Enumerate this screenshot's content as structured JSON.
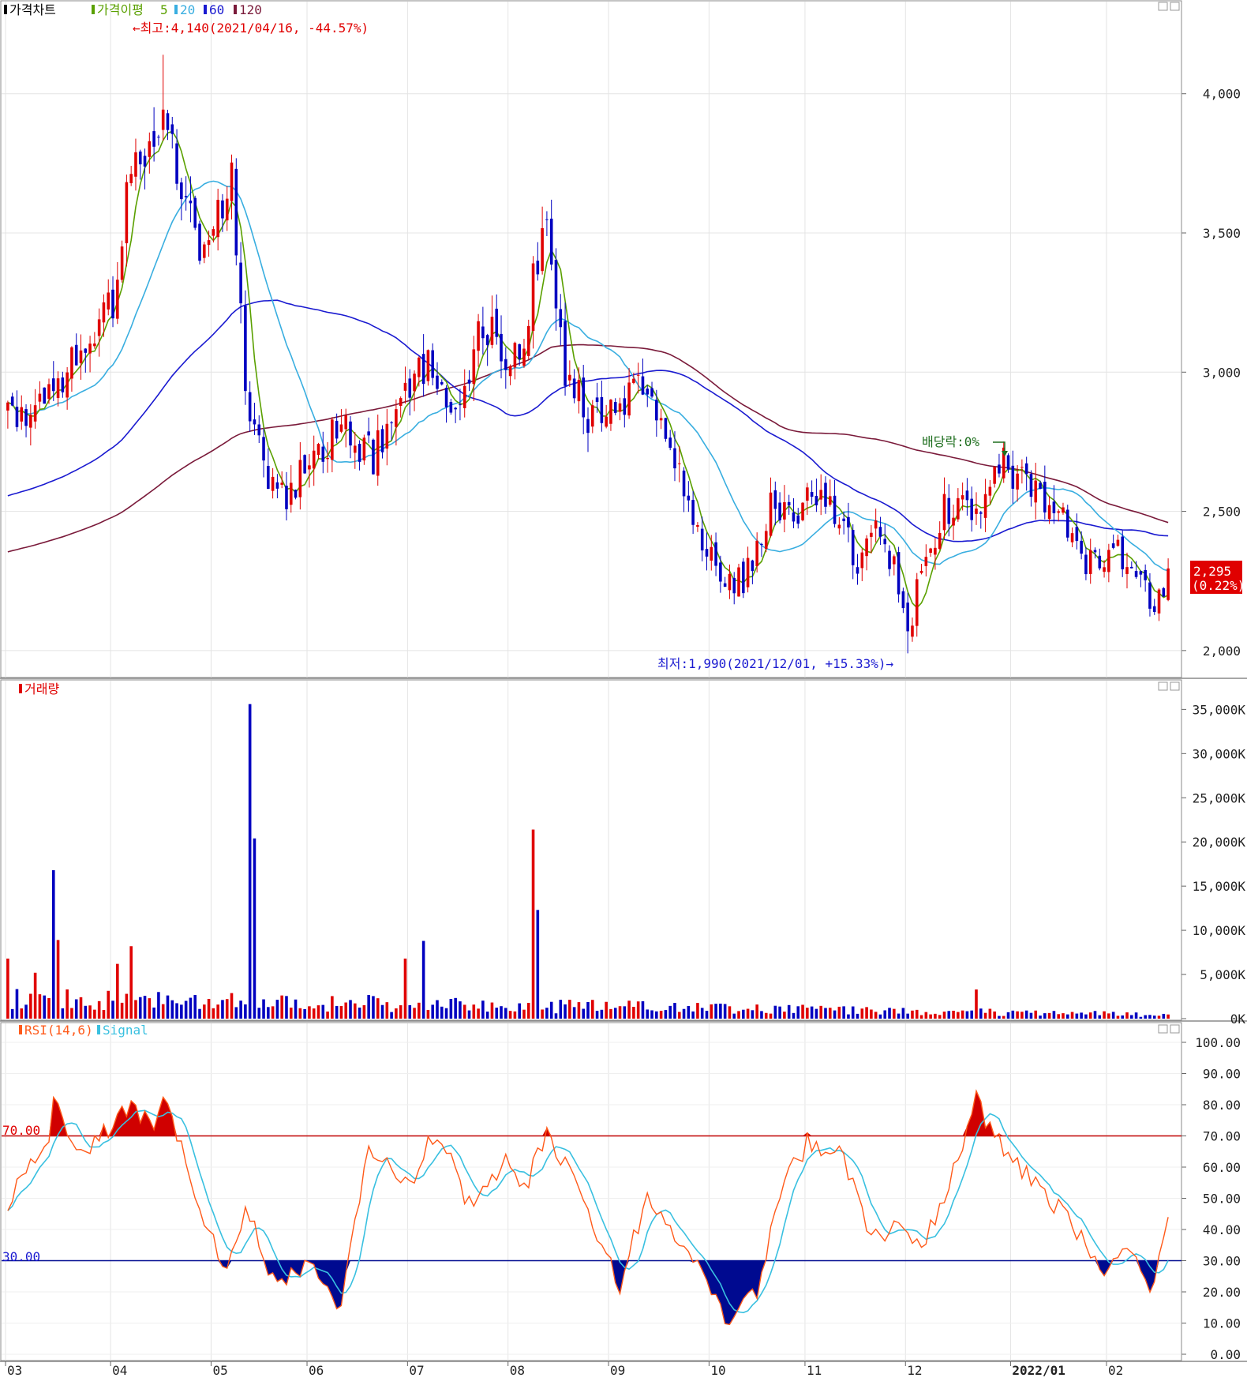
{
  "colors": {
    "up": "#e00000",
    "down": "#0000c0",
    "ma5": "#5aa000",
    "ma20": "#39aee0",
    "ma60": "#1a1ad0",
    "ma120": "#7a1a3a",
    "grid": "#e4e4e4",
    "rsi": "#ff5a1a",
    "signal": "#39c0e0"
  },
  "price_panel": {
    "legend_title": "가격차트",
    "ma_label": "가격이평",
    "ma_periods": [
      "5",
      "20",
      "60",
      "120"
    ],
    "high_annotation": "←최고:4,140(2021/04/16, -44.57%)",
    "low_annotation": "최저:1,990(2021/12/01, +15.33%)→",
    "dividend_annotation": "배당락:0%",
    "last_price": "2,295",
    "last_change": "(0.22%)",
    "y_ticks": [
      "4,000",
      "3,500",
      "3,000",
      "2,500",
      "2,000"
    ]
  },
  "volume_panel": {
    "legend_title": "거래량",
    "y_ticks": [
      "35,000K",
      "30,000K",
      "25,000K",
      "20,000K",
      "15,000K",
      "10,000K",
      "5,000K",
      "0K"
    ]
  },
  "rsi_panel": {
    "legend_rsi": "RSI(14,6)",
    "legend_signal": "Signal",
    "upper_label": "70.00",
    "lower_label": "30.00",
    "y_ticks": [
      "100.00",
      "90.00",
      "80.00",
      "70.00",
      "60.00",
      "50.00",
      "40.00",
      "30.00",
      "20.00",
      "10.00",
      "0.00"
    ]
  },
  "x_axis": {
    "month_labels": [
      "03",
      "04",
      "05",
      "06",
      "07",
      "08",
      "09",
      "10",
      "11",
      "12",
      "2022/01",
      "02"
    ]
  },
  "chart_data": [
    {
      "type": "candlestick",
      "ylim": [
        1940,
        4280
      ],
      "price_anchors": [
        {
          "x": "2021-03-01",
          "close": 2850
        },
        {
          "x": "2021-03-15",
          "close": 2900
        },
        {
          "x": "2021-03-25",
          "close": 3150
        },
        {
          "x": "2021-04-01",
          "close": 3250
        },
        {
          "x": "2021-04-06",
          "close": 3600
        },
        {
          "x": "2021-04-10",
          "close": 3750
        },
        {
          "x": "2021-04-16",
          "close": 3900
        },
        {
          "x": "2021-04-22",
          "close": 3700
        },
        {
          "x": "2021-04-28",
          "close": 3350
        },
        {
          "x": "2021-05-04",
          "close": 3550
        },
        {
          "x": "2021-05-07",
          "close": 3700
        },
        {
          "x": "2021-05-12",
          "close": 3000
        },
        {
          "x": "2021-05-14",
          "close": 2750
        },
        {
          "x": "2021-05-20",
          "close": 2600
        },
        {
          "x": "2021-05-25",
          "close": 2550
        },
        {
          "x": "2021-06-01",
          "close": 2700
        },
        {
          "x": "2021-06-10",
          "close": 2800
        },
        {
          "x": "2021-06-20",
          "close": 2700
        },
        {
          "x": "2021-06-28",
          "close": 2880
        },
        {
          "x": "2021-07-05",
          "close": 3050
        },
        {
          "x": "2021-07-12",
          "close": 2950
        },
        {
          "x": "2021-07-16",
          "close": 2820
        },
        {
          "x": "2021-07-23",
          "close": 3180
        },
        {
          "x": "2021-07-30",
          "close": 3050
        },
        {
          "x": "2021-08-05",
          "close": 3100
        },
        {
          "x": "2021-08-09",
          "close": 3350
        },
        {
          "x": "2021-08-12",
          "close": 3480
        },
        {
          "x": "2021-08-18",
          "close": 3020
        },
        {
          "x": "2021-08-25",
          "close": 2850
        },
        {
          "x": "2021-09-03",
          "close": 2880
        },
        {
          "x": "2021-09-10",
          "close": 2980
        },
        {
          "x": "2021-09-17",
          "close": 2800
        },
        {
          "x": "2021-09-27",
          "close": 2450
        },
        {
          "x": "2021-10-05",
          "close": 2280
        },
        {
          "x": "2021-10-12",
          "close": 2250
        },
        {
          "x": "2021-10-20",
          "close": 2520
        },
        {
          "x": "2021-10-27",
          "close": 2450
        },
        {
          "x": "2021-11-02",
          "close": 2560
        },
        {
          "x": "2021-11-10",
          "close": 2480
        },
        {
          "x": "2021-11-16",
          "close": 2300
        },
        {
          "x": "2021-11-22",
          "close": 2420
        },
        {
          "x": "2021-11-26",
          "close": 2300
        },
        {
          "x": "2021-12-01",
          "close": 2050
        },
        {
          "x": "2021-12-06",
          "close": 2300
        },
        {
          "x": "2021-12-13",
          "close": 2500
        },
        {
          "x": "2021-12-20",
          "close": 2530
        },
        {
          "x": "2021-12-24",
          "close": 2520
        },
        {
          "x": "2021-12-29",
          "close": 2680
        },
        {
          "x": "2022-01-05",
          "close": 2620
        },
        {
          "x": "2022-01-12",
          "close": 2500
        },
        {
          "x": "2022-01-18",
          "close": 2470
        },
        {
          "x": "2022-01-25",
          "close": 2300
        },
        {
          "x": "2022-02-03",
          "close": 2350
        },
        {
          "x": "2022-02-10",
          "close": 2250
        },
        {
          "x": "2022-02-15",
          "close": 2150
        },
        {
          "x": "2022-02-18",
          "close": 2295
        }
      ],
      "high": {
        "x": "2021-04-16",
        "value": 4140
      },
      "low": {
        "x": "2021-12-01",
        "value": 1990
      },
      "last": {
        "value": 2295,
        "change_pct": 0.22
      }
    },
    {
      "type": "bar",
      "ylim": [
        0,
        37000
      ],
      "unit": "K",
      "spikes": [
        {
          "x": "2021-03-15",
          "value": 16800
        },
        {
          "x": "2021-03-16",
          "value": 8900
        },
        {
          "x": "2021-05-13",
          "value": 35600
        },
        {
          "x": "2021-05-14",
          "value": 20400
        },
        {
          "x": "2021-08-09",
          "value": 21400
        },
        {
          "x": "2021-08-10",
          "value": 12300
        },
        {
          "x": "2021-07-06",
          "value": 8800
        },
        {
          "x": "2021-06-30",
          "value": 6800
        },
        {
          "x": "2021-04-07",
          "value": 8200
        },
        {
          "x": "2021-04-02",
          "value": 6200
        },
        {
          "x": "2021-03-01",
          "value": 6800
        },
        {
          "x": "2021-03-09",
          "value": 5200
        },
        {
          "x": "2021-12-22",
          "value": 3300
        }
      ]
    },
    {
      "type": "line",
      "ylim": [
        0,
        100
      ],
      "upper": 70,
      "lower": 30,
      "rsi_anchors": [
        {
          "x": "2021-03-01",
          "value": 48
        },
        {
          "x": "2021-03-12",
          "value": 70
        },
        {
          "x": "2021-03-14",
          "value": 82
        },
        {
          "x": "2021-03-22",
          "value": 63
        },
        {
          "x": "2021-04-02",
          "value": 75
        },
        {
          "x": "2021-04-08",
          "value": 80
        },
        {
          "x": "2021-04-13",
          "value": 72
        },
        {
          "x": "2021-04-16",
          "value": 81
        },
        {
          "x": "2021-04-22",
          "value": 65
        },
        {
          "x": "2021-05-01",
          "value": 40
        },
        {
          "x": "2021-05-05",
          "value": 27
        },
        {
          "x": "2021-05-12",
          "value": 47
        },
        {
          "x": "2021-05-20",
          "value": 24
        },
        {
          "x": "2021-06-01",
          "value": 28
        },
        {
          "x": "2021-06-10",
          "value": 16
        },
        {
          "x": "2021-06-18",
          "value": 66
        },
        {
          "x": "2021-07-01",
          "value": 55
        },
        {
          "x": "2021-07-10",
          "value": 72
        },
        {
          "x": "2021-07-20",
          "value": 48
        },
        {
          "x": "2021-07-30",
          "value": 62
        },
        {
          "x": "2021-08-05",
          "value": 52
        },
        {
          "x": "2021-08-12",
          "value": 72
        },
        {
          "x": "2021-08-25",
          "value": 45
        },
        {
          "x": "2021-09-03",
          "value": 22
        },
        {
          "x": "2021-09-12",
          "value": 52
        },
        {
          "x": "2021-09-20",
          "value": 40
        },
        {
          "x": "2021-10-01",
          "value": 20
        },
        {
          "x": "2021-10-07",
          "value": 10
        },
        {
          "x": "2021-10-15",
          "value": 20
        },
        {
          "x": "2021-10-22",
          "value": 52
        },
        {
          "x": "2021-11-01",
          "value": 68
        },
        {
          "x": "2021-11-10",
          "value": 65
        },
        {
          "x": "2021-11-20",
          "value": 38
        },
        {
          "x": "2021-11-28",
          "value": 40
        },
        {
          "x": "2021-12-06",
          "value": 35
        },
        {
          "x": "2021-12-15",
          "value": 58
        },
        {
          "x": "2021-12-22",
          "value": 81
        },
        {
          "x": "2021-12-29",
          "value": 68
        },
        {
          "x": "2022-01-10",
          "value": 55
        },
        {
          "x": "2022-01-20",
          "value": 42
        },
        {
          "x": "2022-01-28",
          "value": 26
        },
        {
          "x": "2022-02-05",
          "value": 34
        },
        {
          "x": "2022-02-10",
          "value": 28
        },
        {
          "x": "2022-02-14",
          "value": 19
        },
        {
          "x": "2022-02-18",
          "value": 45
        }
      ]
    }
  ]
}
